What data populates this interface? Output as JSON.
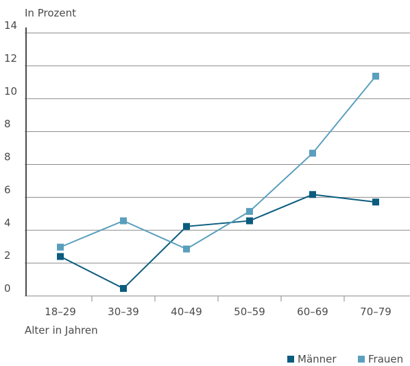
{
  "chart_data": {
    "type": "line",
    "ylabel": "In Prozent",
    "xlabel": "Alter in Jahren",
    "categories": [
      "18–29",
      "30–39",
      "40–49",
      "50–59",
      "60–69",
      "70–79"
    ],
    "y_tick_labels": [
      "0",
      "2",
      "4",
      "6",
      "8",
      "8",
      "10",
      "12",
      "14"
    ],
    "ylim": [
      0,
      14
    ],
    "grid": true,
    "legend": "bottom-right",
    "series": [
      {
        "name": "Männer",
        "color": "#0b5c7e",
        "values": [
          2.1,
          0.4,
          3.7,
          4.0,
          5.4,
          5.0
        ]
      },
      {
        "name": "Frauen",
        "color": "#5a9fbd",
        "values": [
          2.6,
          4.0,
          2.5,
          4.5,
          7.6,
          11.7
        ]
      }
    ]
  }
}
